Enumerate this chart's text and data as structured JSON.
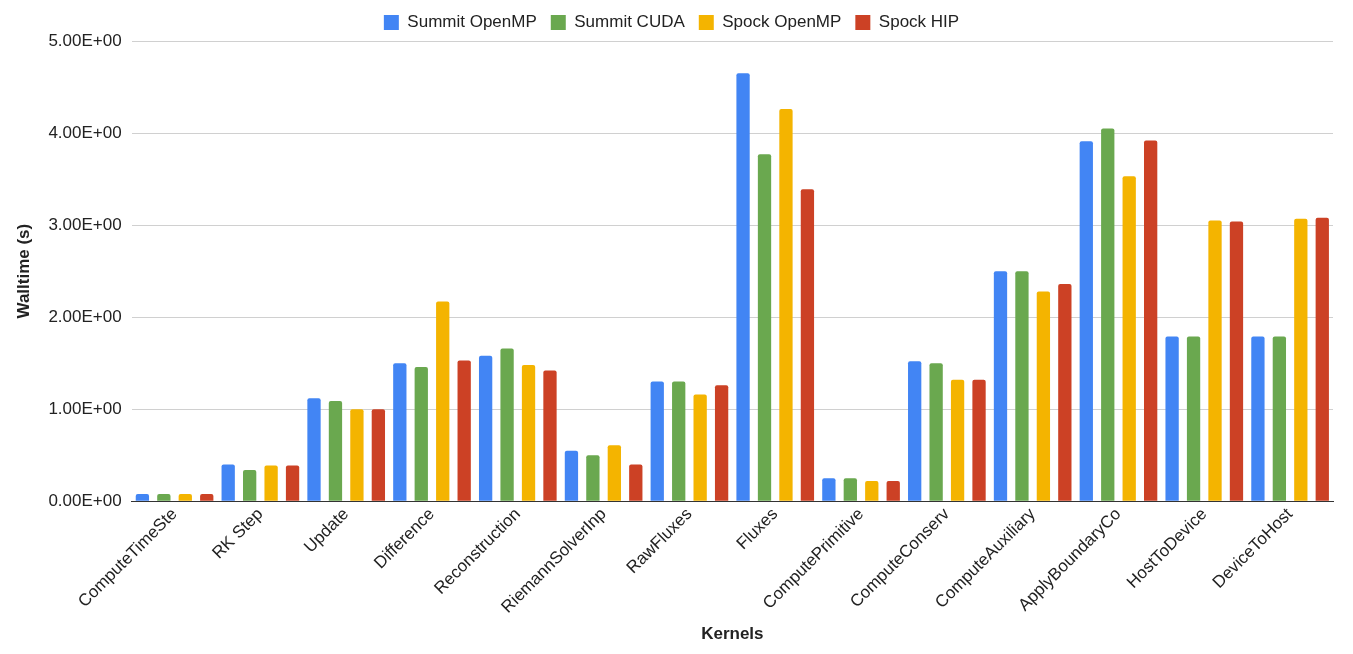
{
  "chart_data": {
    "type": "bar",
    "xlabel": "Kernels",
    "ylabel": "Walltime (s)",
    "categories": [
      "ComputeTimeSte",
      "RK Step",
      "Update",
      "Difference",
      "Reconstruction",
      "RiemannSolverInp",
      "RawFluxes",
      "Fluxes",
      "ComputePrimitive",
      "ComputeConserv",
      "ComputeAuxiliary",
      "ApplyBoundaryCo",
      "HostToDevice",
      "DeviceToHost"
    ],
    "series": [
      {
        "name": "Summit OpenMP",
        "color": "#4285f4",
        "values": [
          0.08,
          0.4,
          1.12,
          1.5,
          1.58,
          0.55,
          1.3,
          4.65,
          0.25,
          1.52,
          2.5,
          3.91,
          1.79,
          1.79
        ]
      },
      {
        "name": "Summit CUDA",
        "color": "#6aa84f",
        "values": [
          0.08,
          0.34,
          1.09,
          1.46,
          1.66,
          0.5,
          1.3,
          3.77,
          0.25,
          1.5,
          2.5,
          4.05,
          1.79,
          1.79
        ]
      },
      {
        "name": "Spock OpenMP",
        "color": "#f4b400",
        "values": [
          0.08,
          0.39,
          1.0,
          2.17,
          1.48,
          0.61,
          1.16,
          4.26,
          0.22,
          1.32,
          2.28,
          3.53,
          3.05,
          3.07
        ]
      },
      {
        "name": "Spock HIP",
        "color": "#cc4125",
        "values": [
          0.08,
          0.39,
          1.0,
          1.53,
          1.42,
          0.4,
          1.26,
          3.39,
          0.22,
          1.32,
          2.36,
          3.92,
          3.04,
          3.08
        ]
      }
    ],
    "ylim": [
      0,
      5
    ],
    "yticks": [
      {
        "value": 0,
        "label": "0.00E+00"
      },
      {
        "value": 1,
        "label": "1.00E+00"
      },
      {
        "value": 2,
        "label": "2.00E+00"
      },
      {
        "value": 3,
        "label": "3.00E+00"
      },
      {
        "value": 4,
        "label": "4.00E+00"
      },
      {
        "value": 5,
        "label": "5.00E+00"
      }
    ],
    "grid": "y",
    "legend": "top"
  }
}
